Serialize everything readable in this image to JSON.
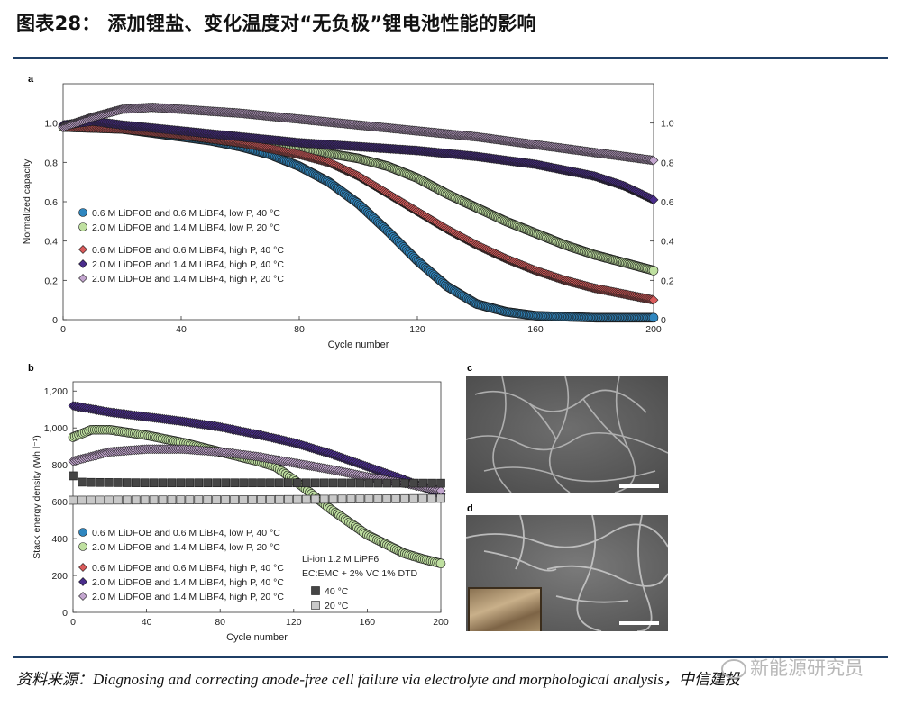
{
  "figure": {
    "title": "图表28：  添加锂盐、变化温度对“无负极”锂电池性能的影响",
    "source": "资料来源：Diagnosing and correcting anode-free cell failure via electrolyte and morphological analysis，中信建投",
    "watermark": "新能源研究员",
    "watermark_icon": "wechat-icon"
  },
  "panels": {
    "a": "a",
    "b": "b",
    "c": "c",
    "d": "d"
  },
  "colors": {
    "blue": "#2f86bf",
    "green": "#bfe0a0",
    "red": "#d95b5b",
    "purple": "#4a2d8c",
    "lilac": "#c3a6cf",
    "black": "#454545",
    "grey": "#c8c8c8"
  },
  "chart_data": [
    {
      "type": "scatter",
      "panel": "a",
      "xlabel": "Cycle number",
      "ylabel": "Normalized capacity",
      "xlim": [
        0,
        200
      ],
      "ylim": [
        0,
        1.2
      ],
      "xticks": [
        "0",
        "40",
        "80",
        "120",
        "160",
        "200"
      ],
      "yticks": [
        "0",
        "0.2",
        "0.4",
        "0.6",
        "0.8",
        "1.0"
      ],
      "yticks_right": [
        "0",
        "0.2",
        "0.4",
        "0.6",
        "0.8",
        "1.0"
      ],
      "legend_position": "lower-left",
      "series": [
        {
          "name": "0.6 M LiDFOB and 0.6 M LiBF4, low P, 40 °C",
          "marker": "circle",
          "color": "blue",
          "points": [
            [
              0,
              0.98
            ],
            [
              10,
              0.99
            ],
            [
              20,
              0.97
            ],
            [
              30,
              0.95
            ],
            [
              40,
              0.93
            ],
            [
              50,
              0.91
            ],
            [
              60,
              0.88
            ],
            [
              70,
              0.84
            ],
            [
              80,
              0.78
            ],
            [
              90,
              0.7
            ],
            [
              100,
              0.59
            ],
            [
              110,
              0.45
            ],
            [
              120,
              0.3
            ],
            [
              130,
              0.17
            ],
            [
              140,
              0.08
            ],
            [
              150,
              0.04
            ],
            [
              160,
              0.02
            ],
            [
              180,
              0.01
            ],
            [
              200,
              0.01
            ]
          ]
        },
        {
          "name": "2.0 M LiDFOB and 1.4 M LiBF4, low P, 20 °C",
          "marker": "circle",
          "color": "green",
          "points": [
            [
              0,
              0.98
            ],
            [
              20,
              0.97
            ],
            [
              40,
              0.94
            ],
            [
              60,
              0.9
            ],
            [
              80,
              0.87
            ],
            [
              100,
              0.82
            ],
            [
              110,
              0.78
            ],
            [
              120,
              0.72
            ],
            [
              130,
              0.64
            ],
            [
              140,
              0.57
            ],
            [
              150,
              0.5
            ],
            [
              160,
              0.44
            ],
            [
              170,
              0.38
            ],
            [
              180,
              0.33
            ],
            [
              190,
              0.29
            ],
            [
              200,
              0.25
            ]
          ]
        },
        {
          "name": "0.6 M LiDFOB and 0.6 M LiBF4, high P, 40 °C",
          "marker": "diamond",
          "color": "red",
          "points": [
            [
              0,
              0.98
            ],
            [
              20,
              0.97
            ],
            [
              40,
              0.94
            ],
            [
              60,
              0.9
            ],
            [
              80,
              0.84
            ],
            [
              90,
              0.8
            ],
            [
              100,
              0.73
            ],
            [
              110,
              0.64
            ],
            [
              120,
              0.55
            ],
            [
              130,
              0.46
            ],
            [
              140,
              0.38
            ],
            [
              150,
              0.31
            ],
            [
              160,
              0.25
            ],
            [
              170,
              0.2
            ],
            [
              180,
              0.16
            ],
            [
              190,
              0.13
            ],
            [
              200,
              0.1
            ]
          ]
        },
        {
          "name": "2.0 M LiDFOB and 1.4 M LiBF4, high P, 40 °C",
          "marker": "diamond",
          "color": "purple",
          "points": [
            [
              0,
              0.99
            ],
            [
              10,
              1.01
            ],
            [
              20,
              0.99
            ],
            [
              40,
              0.96
            ],
            [
              60,
              0.93
            ],
            [
              80,
              0.9
            ],
            [
              100,
              0.88
            ],
            [
              120,
              0.86
            ],
            [
              140,
              0.83
            ],
            [
              160,
              0.79
            ],
            [
              170,
              0.76
            ],
            [
              180,
              0.73
            ],
            [
              190,
              0.68
            ],
            [
              200,
              0.61
            ]
          ]
        },
        {
          "name": "2.0 M LiDFOB and 1.4 M LiBF4, high P, 20 °C",
          "marker": "diamond",
          "color": "lilac",
          "points": [
            [
              0,
              0.98
            ],
            [
              10,
              1.03
            ],
            [
              20,
              1.07
            ],
            [
              30,
              1.08
            ],
            [
              40,
              1.07
            ],
            [
              60,
              1.05
            ],
            [
              80,
              1.02
            ],
            [
              100,
              0.99
            ],
            [
              120,
              0.96
            ],
            [
              140,
              0.93
            ],
            [
              160,
              0.89
            ],
            [
              180,
              0.85
            ],
            [
              200,
              0.81
            ]
          ]
        }
      ]
    },
    {
      "type": "scatter",
      "panel": "b",
      "xlabel": "Cycle number",
      "ylabel": "Stack energy density (Wh l⁻¹)",
      "xlim": [
        0,
        200
      ],
      "ylim": [
        0,
        1250
      ],
      "xticks": [
        "0",
        "40",
        "80",
        "120",
        "160",
        "200"
      ],
      "yticks": [
        "0",
        "200",
        "400",
        "600",
        "800",
        "1,000",
        "1,200"
      ],
      "legend_position": "lower-left",
      "legend2_title": [
        "Li-ion 1.2 M LiPF6",
        "EC:EMC + 2% VC 1% DTD"
      ],
      "series": [
        {
          "name": "0.6 M LiDFOB and 0.6 M LiBF4, low P, 40 °C",
          "marker": "circle",
          "color": "blue",
          "points": []
        },
        {
          "name": "2.0 M LiDFOB and 1.4 M LiBF4, low P, 20 °C",
          "marker": "circle",
          "color": "green",
          "points": [
            [
              0,
              950
            ],
            [
              10,
              990
            ],
            [
              20,
              990
            ],
            [
              30,
              975
            ],
            [
              40,
              960
            ],
            [
              60,
              920
            ],
            [
              80,
              870
            ],
            [
              100,
              820
            ],
            [
              110,
              790
            ],
            [
              120,
              720
            ],
            [
              130,
              640
            ],
            [
              140,
              560
            ],
            [
              150,
              490
            ],
            [
              160,
              420
            ],
            [
              170,
              370
            ],
            [
              180,
              320
            ],
            [
              190,
              290
            ],
            [
              200,
              265
            ]
          ]
        },
        {
          "name": "0.6 M LiDFOB and 0.6 M LiBF4, high P, 40 °C",
          "marker": "diamond",
          "color": "red",
          "points": []
        },
        {
          "name": "2.0 M LiDFOB and 1.4 M LiBF4, high P, 40 °C",
          "marker": "diamond",
          "color": "purple",
          "points": [
            [
              0,
              1120
            ],
            [
              20,
              1085
            ],
            [
              40,
              1060
            ],
            [
              60,
              1035
            ],
            [
              80,
              1005
            ],
            [
              100,
              965
            ],
            [
              120,
              920
            ],
            [
              140,
              860
            ],
            [
              160,
              790
            ],
            [
              180,
              720
            ],
            [
              190,
              680
            ],
            [
              200,
              640
            ]
          ]
        },
        {
          "name": "2.0 M LiDFOB and 1.4 M LiBF4, high P, 20 °C",
          "marker": "diamond",
          "color": "lilac",
          "points": [
            [
              0,
              820
            ],
            [
              20,
              870
            ],
            [
              40,
              885
            ],
            [
              60,
              885
            ],
            [
              80,
              870
            ],
            [
              100,
              845
            ],
            [
              120,
              810
            ],
            [
              140,
              775
            ],
            [
              160,
              735
            ],
            [
              180,
              700
            ],
            [
              200,
              660
            ]
          ]
        },
        {
          "name": "40 °C",
          "marker": "square",
          "color": "black",
          "points": [
            [
              0,
              740
            ],
            [
              5,
              705
            ],
            [
              40,
              702
            ],
            [
              80,
              702
            ],
            [
              120,
              702
            ],
            [
              160,
              701
            ],
            [
              200,
              700
            ]
          ]
        },
        {
          "name": "20 °C",
          "marker": "square",
          "color": "grey",
          "points": [
            [
              0,
              608
            ],
            [
              40,
              609
            ],
            [
              80,
              610
            ],
            [
              120,
              612
            ],
            [
              160,
              615
            ],
            [
              200,
              618
            ]
          ]
        }
      ]
    }
  ]
}
